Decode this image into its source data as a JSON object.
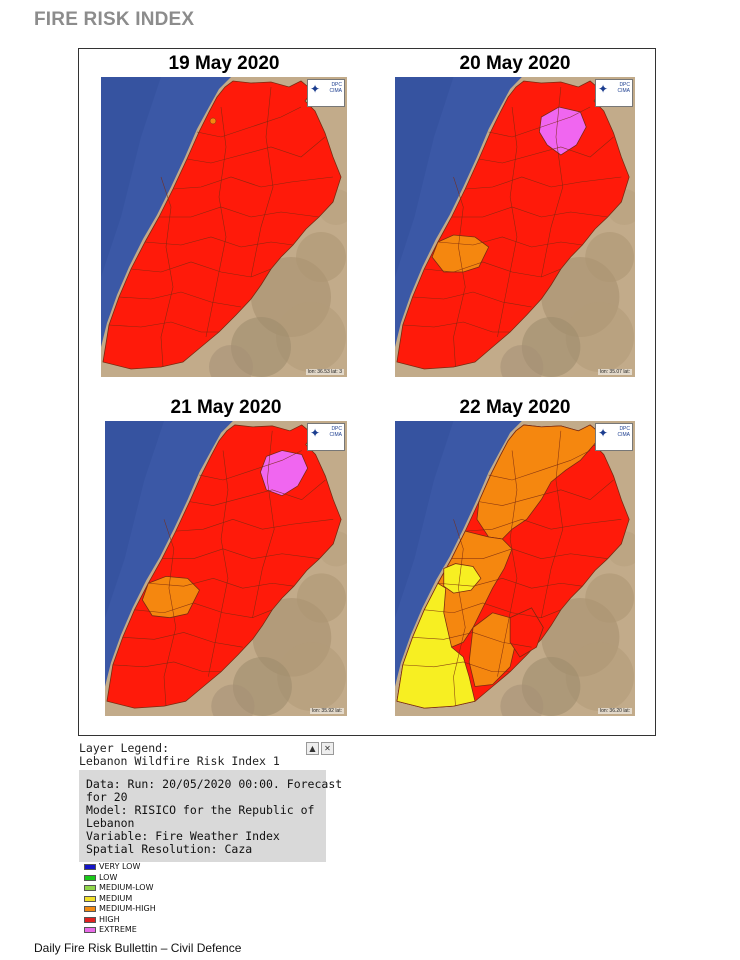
{
  "header": {
    "title": "FIRE RISK INDEX"
  },
  "panels": [
    {
      "date": "19 May 2020",
      "scale_label": "lon: 36.53 lat: 3",
      "variant": 1
    },
    {
      "date": "20 May 2020",
      "scale_label": "lon: 35.07 lat:",
      "variant": 2
    },
    {
      "date": "21 May 2020",
      "scale_label": "lon: 35.92 lat:",
      "variant": 3
    },
    {
      "date": "22 May 2020",
      "scale_label": "lon: 36.20 lat:",
      "variant": 4
    }
  ],
  "logo": {
    "text_line1": "DPC",
    "text_line2": "CIMA"
  },
  "legend": {
    "title_line1": "Layer Legend:",
    "title_line2": "Lebanon Wildfire Risk Index 1",
    "info_lines": [
      "Data: Run: 20/05/2020 00:00. Forecast",
      "for 20",
      "Model: RISICO for the Republic of",
      "Lebanon",
      "Variable: Fire Weather Index",
      "Spatial Resolution: Caza"
    ],
    "items": [
      {
        "label": "VERY LOW",
        "color": "#1515c8"
      },
      {
        "label": "LOW",
        "color": "#19c819"
      },
      {
        "label": "MEDIUM-LOW",
        "color": "#8fd64a"
      },
      {
        "label": "MEDIUM",
        "color": "#f2e02a"
      },
      {
        "label": "MEDIUM-HIGH",
        "color": "#f28a12"
      },
      {
        "label": "HIGH",
        "color": "#e02020"
      },
      {
        "label": "EXTREME",
        "color": "#e86ae8"
      }
    ]
  },
  "footer": {
    "text": "Daily Fire Risk Bullettin – Civil Defence"
  }
}
